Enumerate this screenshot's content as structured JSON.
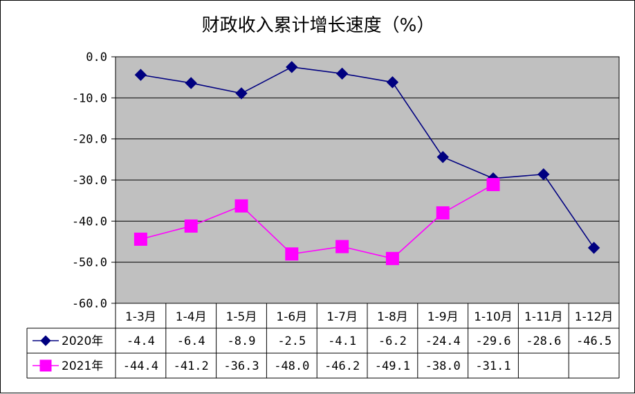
{
  "chart_data": {
    "type": "line",
    "title": "财政收入累计增长速度（%）",
    "categories": [
      "1-3月",
      "1-4月",
      "1-5月",
      "1-6月",
      "1-7月",
      "1-8月",
      "1-9月",
      "1-10月",
      "1-11月",
      "1-12月"
    ],
    "ylim": [
      -60,
      0
    ],
    "yticks": [
      "0.0",
      "-10.0",
      "-20.0",
      "-30.0",
      "-40.0",
      "-50.0",
      "-60.0"
    ],
    "grid": true,
    "legend": "data-table-left",
    "series": [
      {
        "name": "2020年",
        "color": "#000080",
        "marker": "diamond",
        "values": [
          -4.4,
          -6.4,
          -8.9,
          -2.5,
          -4.1,
          -6.2,
          -24.4,
          -29.6,
          -28.6,
          -46.5
        ],
        "labels": [
          "-4.4",
          "-6.4",
          "-8.9",
          "-2.5",
          "-4.1",
          "-6.2",
          "-24.4",
          "-29.6",
          "-28.6",
          "-46.5"
        ]
      },
      {
        "name": "2021年",
        "color": "#ff00ff",
        "marker": "square",
        "values": [
          -44.4,
          -41.2,
          -36.3,
          -48.0,
          -46.2,
          -49.1,
          -38.0,
          -31.1,
          null,
          null
        ],
        "labels": [
          "-44.4",
          "-41.2",
          "-36.3",
          "-48.0",
          "-46.2",
          "-49.1",
          "-38.0",
          "-31.1",
          "",
          ""
        ]
      }
    ],
    "plot_background": "#c0c0c0"
  }
}
